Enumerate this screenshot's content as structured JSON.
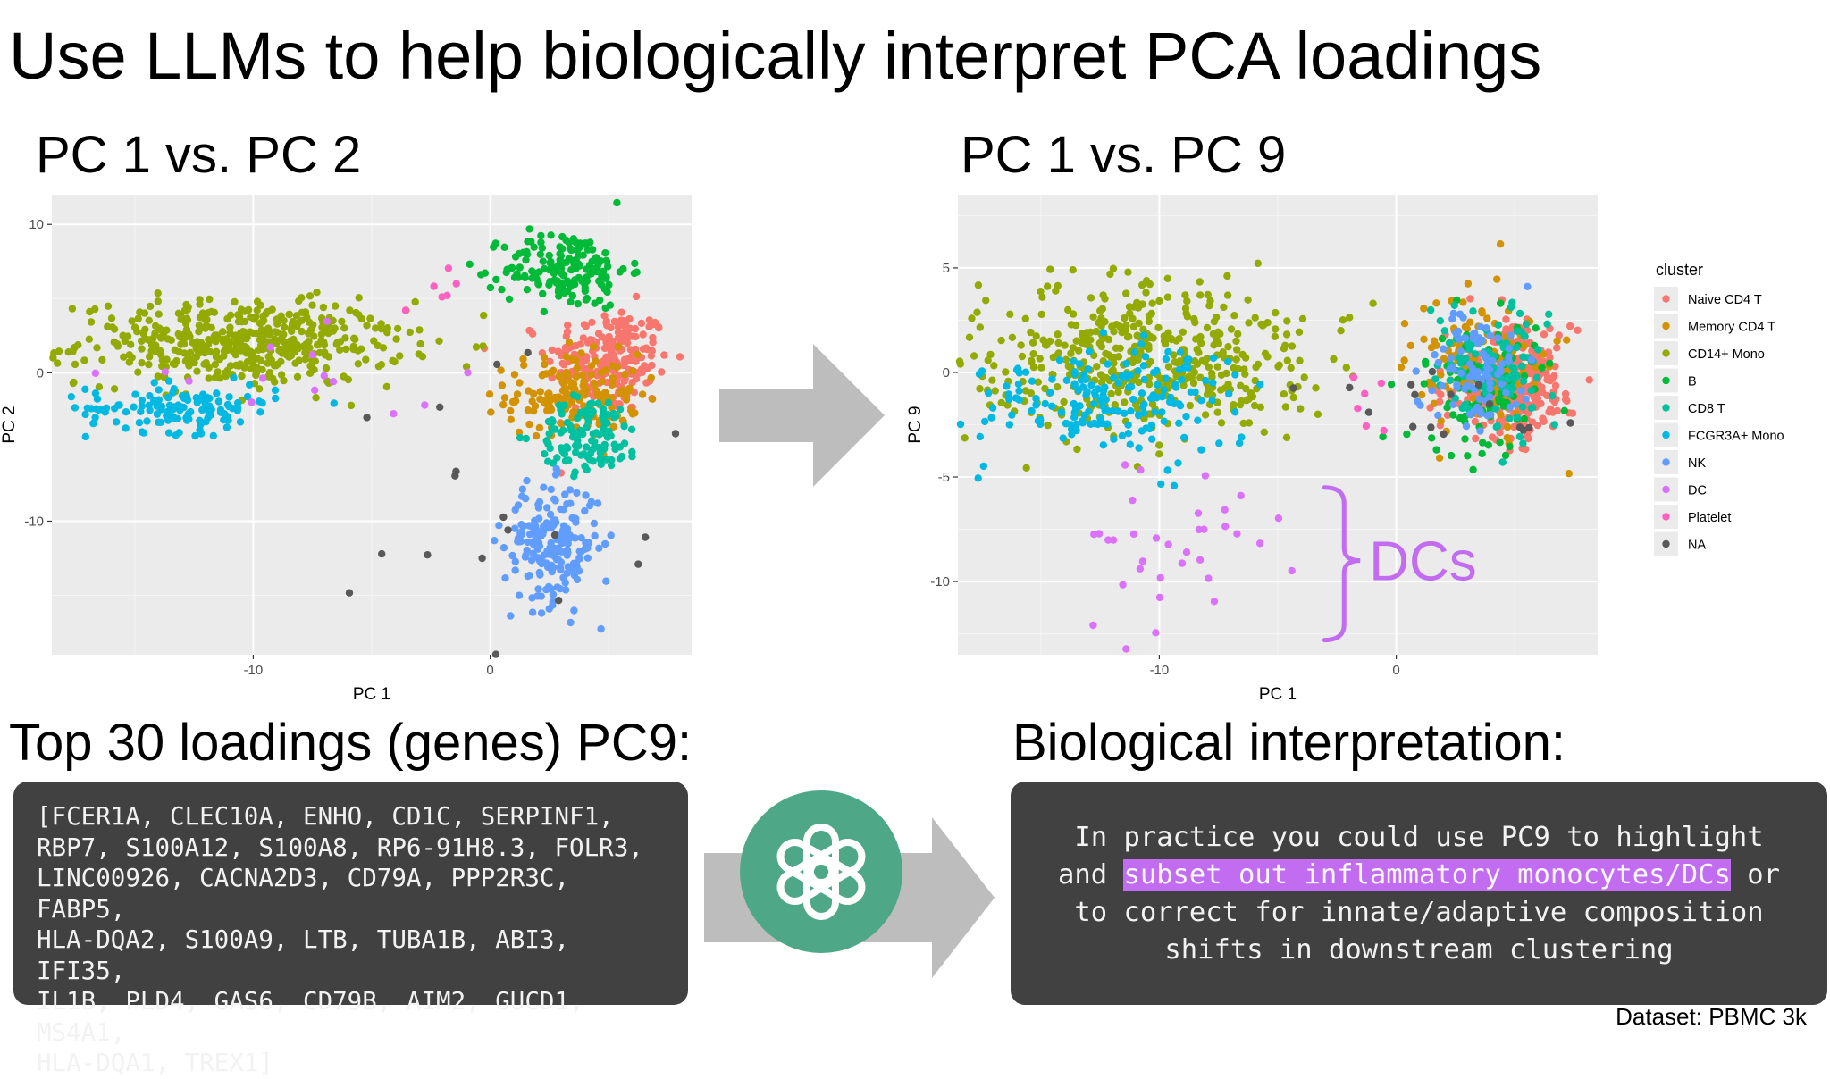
{
  "title": "Use LLMs to help biologically interpret PCA loadings",
  "plot1_heading": "PC 1 vs. PC 2",
  "plot2_heading": "PC 1 vs. PC 9",
  "loadings_heading": "Top 30 loadings (genes) PC9:",
  "interpretation_heading": "Biological interpretation:",
  "gene_lines": [
    "[FCER1A, CLEC10A, ENHO, CD1C, SERPINF1,",
    "RBP7, S100A12, S100A8, RP6-91H8.3, FOLR3,",
    "LINC00926, CACNA2D3, CD79A, PPP2R3C, FABP5,",
    "HLA-DQA2, S100A9, LTB, TUBA1B, ABI3, IFI35,",
    "IL1B, PLD4, GAS6, CD79B, AIM2, GUCD1, MS4A1,",
    "HLA-DQA1, TREX1]"
  ],
  "interpretation": {
    "line1": "In practice you could use PC9 to highlight",
    "line2_pre": "and ",
    "line2_highlight": "subset out inflammatory monocytes/DCs",
    "line2_post": " or",
    "line3": "to correct for innate/adaptive composition",
    "line4": "shifts in downstream clustering"
  },
  "dataset_label": "Dataset: PBMC 3k",
  "colors": {
    "panel_bg": "#414141",
    "highlight": "#c26cf2",
    "arrow": "#bdbdbd",
    "plot_bg": "#ebebeb",
    "dc_annotation": "#c26cf2",
    "logo_green": "#4ea887"
  },
  "icons": {
    "arrow_top": "right-arrow-icon",
    "arrow_bottom": "right-arrow-icon",
    "logo": "openai-logo-icon"
  },
  "chart_data": [
    {
      "type": "scatter",
      "title": "",
      "xlabel": "PC 1",
      "ylabel": "PC 2",
      "xlim": [
        -18.5,
        8.5
      ],
      "ylim": [
        -19,
        12
      ],
      "x_ticks": [
        -10,
        0
      ],
      "y_ticks": [
        10,
        0,
        -10
      ],
      "grid": true,
      "legend": "none",
      "clusters": [
        {
          "name": "Naive CD4 T",
          "color": "#f8766d",
          "n": 230,
          "cx": 5.0,
          "cy": 0.8,
          "sx": 1.3,
          "sy": 1.8
        },
        {
          "name": "Memory CD4 T",
          "color": "#d39200",
          "n": 160,
          "cx": 3.5,
          "cy": -1.5,
          "sx": 1.4,
          "sy": 1.4
        },
        {
          "name": "CD14+ Mono",
          "color": "#93aa00",
          "n": 480,
          "cx": -10.5,
          "cy": 2.0,
          "sx": 3.4,
          "sy": 1.4
        },
        {
          "name": "B",
          "color": "#00ba38",
          "n": 170,
          "cx": 3.2,
          "cy": 7.0,
          "sx": 1.3,
          "sy": 1.3
        },
        {
          "name": "CD8 T",
          "color": "#00c19f",
          "n": 120,
          "cx": 4.2,
          "cy": -4.2,
          "sx": 1.1,
          "sy": 1.3
        },
        {
          "name": "FCGR3A+ Mono",
          "color": "#00b9e3",
          "n": 130,
          "cx": -13.0,
          "cy": -2.4,
          "sx": 2.0,
          "sy": 0.8
        },
        {
          "name": "NK",
          "color": "#619cff",
          "n": 200,
          "cx": 2.6,
          "cy": -11.5,
          "sx": 1.0,
          "sy": 2.0
        },
        {
          "name": "DC",
          "color": "#db72fb",
          "n": 14,
          "cx": -9.0,
          "cy": -0.5,
          "sx": 3.5,
          "sy": 1.5
        },
        {
          "name": "Platelet",
          "color": "#ff61c3",
          "n": 6,
          "cx": -1.5,
          "cy": 5.5,
          "sx": 0.7,
          "sy": 0.7
        },
        {
          "name": "NA",
          "color": "#595959",
          "n": 18,
          "cx": 1.0,
          "cy": -6.0,
          "sx": 3.5,
          "sy": 6.0
        }
      ]
    },
    {
      "type": "scatter",
      "title": "",
      "xlabel": "PC 1",
      "ylabel": "PC 9",
      "xlim": [
        -18.5,
        8.5
      ],
      "ylim": [
        -13.5,
        8.5
      ],
      "x_ticks": [
        -10,
        0
      ],
      "y_ticks": [
        5,
        0,
        -5,
        -10
      ],
      "grid": true,
      "legend": "right",
      "legend_title": "cluster",
      "annotation": "DCs",
      "clusters": [
        {
          "name": "Naive CD4 T",
          "color": "#f8766d",
          "n": 320,
          "cx": 4.8,
          "cy": -0.5,
          "sx": 1.3,
          "sy": 1.3
        },
        {
          "name": "Memory CD4 T",
          "color": "#d39200",
          "n": 120,
          "cx": 3.5,
          "cy": 0.5,
          "sx": 1.4,
          "sy": 1.6
        },
        {
          "name": "CD14+ Mono",
          "color": "#93aa00",
          "n": 470,
          "cx": -10.5,
          "cy": 0.6,
          "sx": 3.6,
          "sy": 1.8
        },
        {
          "name": "B",
          "color": "#00ba38",
          "n": 100,
          "cx": 3.8,
          "cy": -0.8,
          "sx": 1.3,
          "sy": 1.6
        },
        {
          "name": "CD8 T",
          "color": "#00c19f",
          "n": 110,
          "cx": 4.0,
          "cy": 0.3,
          "sx": 1.2,
          "sy": 1.5
        },
        {
          "name": "FCGR3A+ Mono",
          "color": "#00b9e3",
          "n": 190,
          "cx": -12.5,
          "cy": -1.2,
          "sx": 2.6,
          "sy": 1.3
        },
        {
          "name": "NK",
          "color": "#619cff",
          "n": 90,
          "cx": 3.2,
          "cy": 0.2,
          "sx": 1.1,
          "sy": 1.5
        },
        {
          "name": "DC",
          "color": "#db72fb",
          "n": 34,
          "cx": -9.3,
          "cy": -8.8,
          "sx": 2.6,
          "sy": 2.0
        },
        {
          "name": "Platelet",
          "color": "#ff61c3",
          "n": 6,
          "cx": -1.3,
          "cy": -1.5,
          "sx": 0.5,
          "sy": 0.9
        },
        {
          "name": "NA",
          "color": "#595959",
          "n": 16,
          "cx": 1.5,
          "cy": -1.5,
          "sx": 3.0,
          "sy": 1.0
        }
      ]
    }
  ]
}
